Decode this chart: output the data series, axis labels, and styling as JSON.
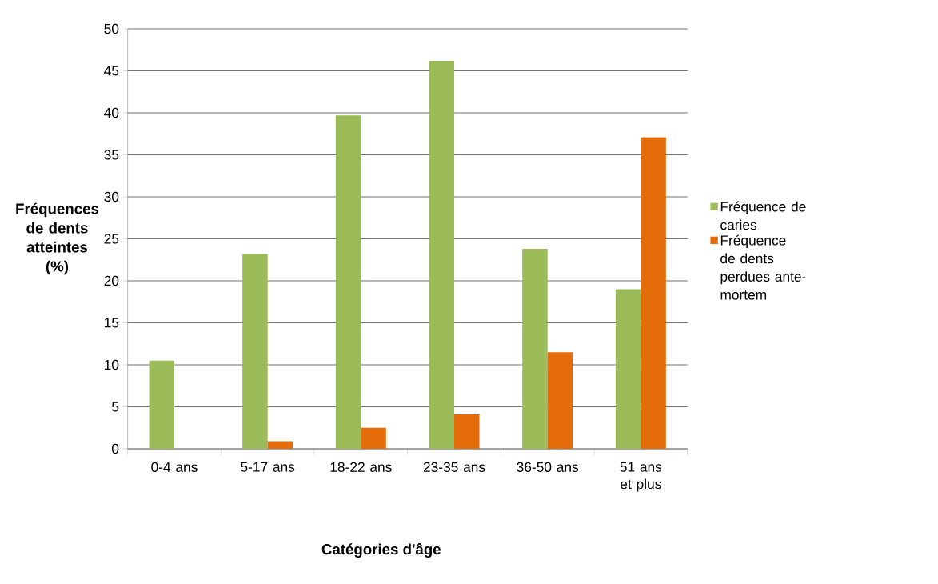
{
  "chart_data": {
    "type": "bar",
    "xlabel": "Catégories d'âge",
    "ylabel": "Fréquences de dents atteintes (%)",
    "categories": [
      "0-4 ans",
      "5-17 ans",
      "18-22 ans",
      "23-35 ans",
      "36-50 ans",
      "51 ans et plus"
    ],
    "series": [
      {
        "name": "Fréquence de caries",
        "color": "#9bbb59",
        "values": [
          10.5,
          23.2,
          39.7,
          46.2,
          23.8,
          19.0
        ]
      },
      {
        "name": "Fréquence de dents perdues ante-mortem",
        "color": "#e46c0a",
        "values": [
          0,
          0.9,
          2.5,
          4.1,
          11.5,
          37.1
        ]
      }
    ],
    "ylim": [
      0,
      50
    ],
    "yticks": [
      0,
      5,
      10,
      15,
      20,
      25,
      30,
      35,
      40,
      45,
      50
    ],
    "grid": "y",
    "legend": "right"
  }
}
